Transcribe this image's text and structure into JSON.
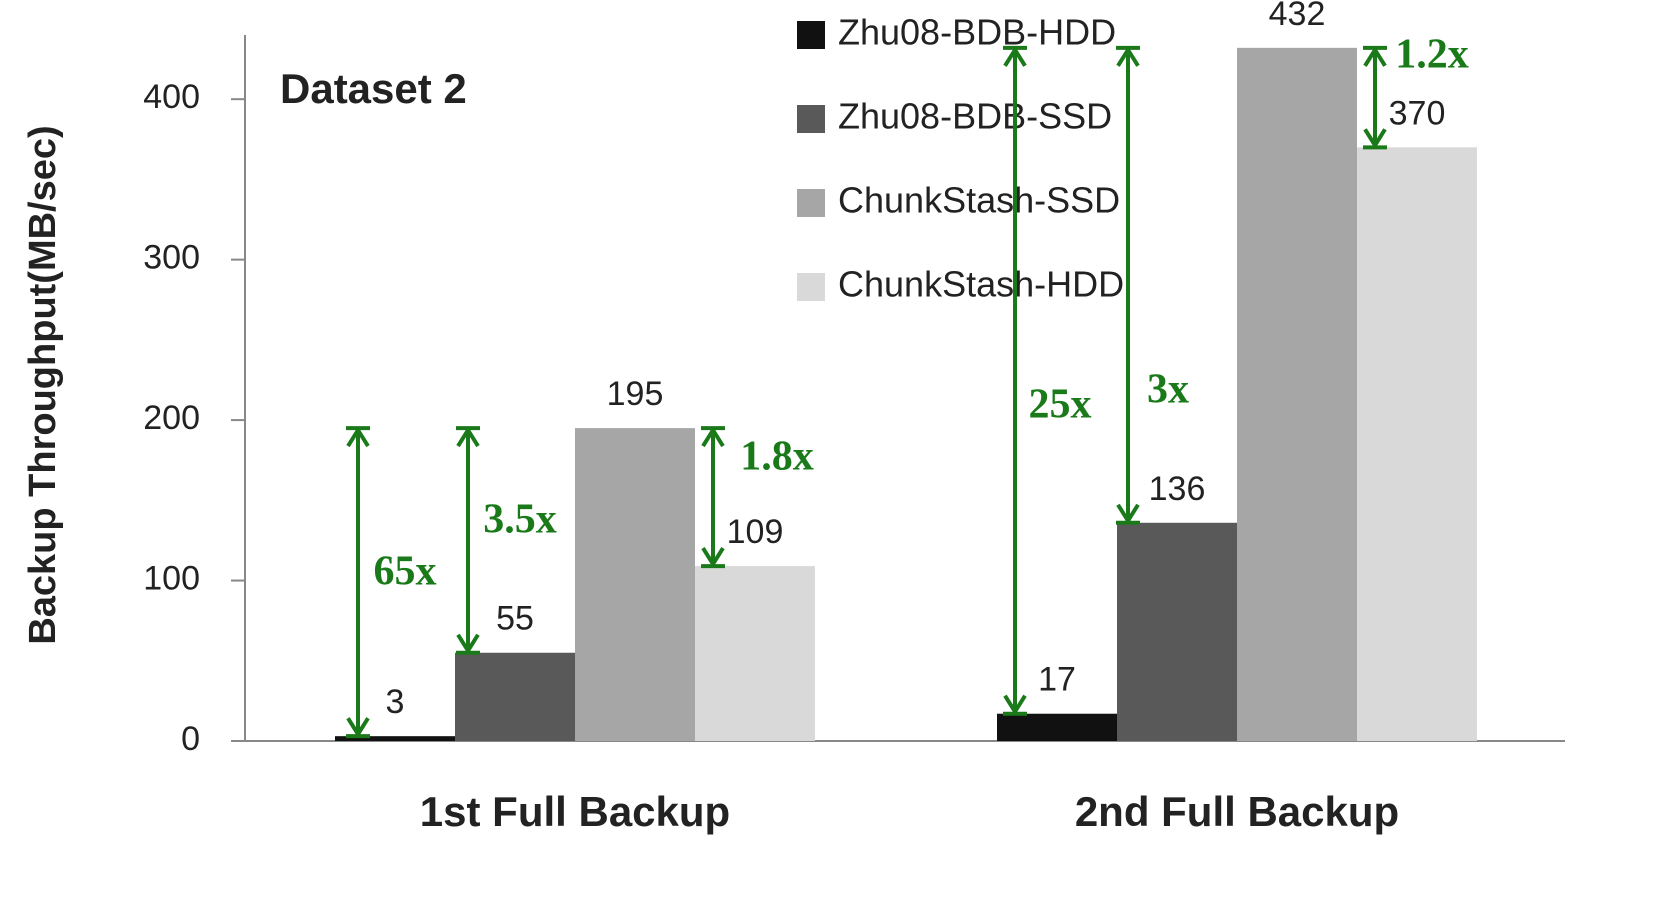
{
  "chart_data": {
    "type": "bar",
    "title": "Dataset 2",
    "y_label": "Backup Throughput(MB/sec)",
    "categories": [
      "1st Full Backup",
      "2nd Full Backup"
    ],
    "series": [
      {
        "name": "Zhu08-BDB-HDD",
        "color": "#111111",
        "values": [
          3,
          17
        ]
      },
      {
        "name": "Zhu08-BDB-SSD",
        "color": "#595959",
        "values": [
          55,
          136
        ]
      },
      {
        "name": "ChunkStash-SSD",
        "color": "#a6a6a6",
        "values": [
          195,
          432
        ]
      },
      {
        "name": "ChunkStash-HDD",
        "color": "#d9d9d9",
        "values": [
          109,
          370
        ]
      }
    ],
    "annotations": [
      "65x",
      "3.5x",
      "1.8x",
      "25x",
      "3x",
      "1.2x"
    ],
    "annotation_color": "#1a7a1a",
    "ylim": [
      0,
      440
    ],
    "yticks": [
      0,
      100,
      200,
      300,
      400
    ],
    "legend": "top"
  }
}
